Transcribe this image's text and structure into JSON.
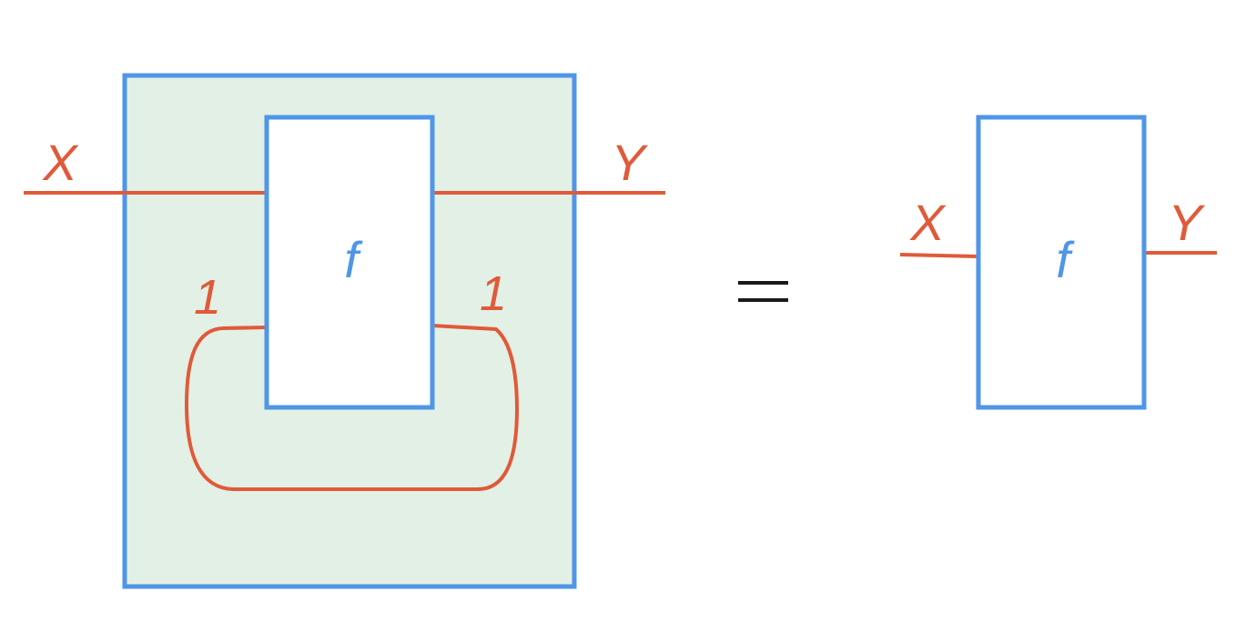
{
  "left_diagram": {
    "input_label": "X",
    "output_label": "Y",
    "box_label": "f",
    "loop_left_label": "1",
    "loop_right_label": "1"
  },
  "equals_sign": "=",
  "right_diagram": {
    "input_label": "X",
    "output_label": "Y",
    "box_label": "f"
  },
  "colors": {
    "wire": "#e05a3a",
    "box_stroke": "#4f96e8",
    "box_label": "#4f96e8",
    "outer_fill": "#e3f0e5",
    "inner_fill": "#ffffff",
    "equals": "#1a1a1a"
  }
}
